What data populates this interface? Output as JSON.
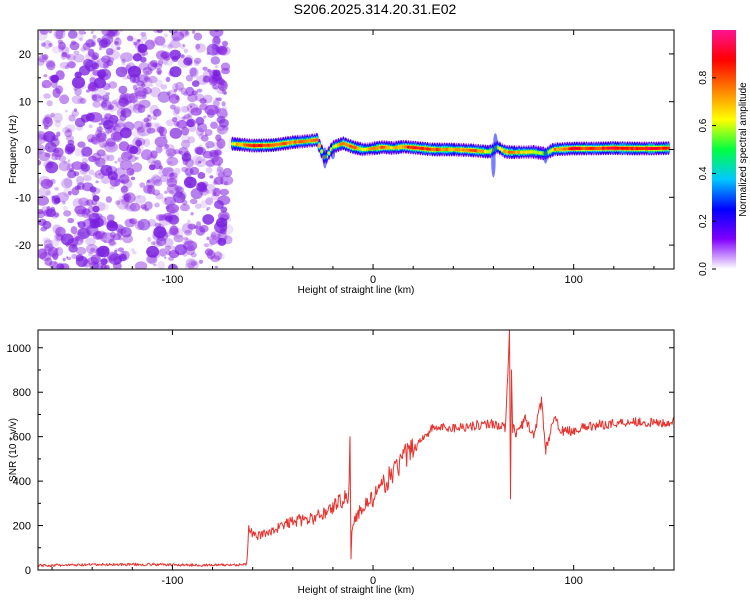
{
  "figure": {
    "title": "S206.2025.314.20.31.E02",
    "colorbar_label": "Normalized spectral amplitude",
    "colorbar_ticks": [
      0.0,
      0.2,
      0.4,
      0.6,
      0.8
    ],
    "colorbar_tick_labels": [
      "0.0",
      "0.2",
      "0.4",
      "0.6",
      "0.8"
    ],
    "colormap": [
      "#ffffff",
      "#8000ff",
      "#0000ff",
      "#00c8ff",
      "#00ff40",
      "#ffff00",
      "#ff8000",
      "#ff0000",
      "#ff1493"
    ]
  },
  "chart_data": [
    {
      "type": "heatmap",
      "xlabel": "Height of straight line (km)",
      "ylabel": "Frequency (Hz)",
      "xlim": [
        -167,
        150
      ],
      "ylim": [
        -25,
        25
      ],
      "xticks": [
        -100,
        0,
        100
      ],
      "xtick_labels": [
        "-100",
        "0",
        "100"
      ],
      "yticks": [
        -20,
        -10,
        0,
        10,
        20
      ],
      "ytick_labels": [
        "-20",
        "-10",
        "0",
        "10",
        "20"
      ],
      "noise_region_x": [
        -167,
        -72
      ],
      "ridge": {
        "x": [
          -70,
          -60,
          -50,
          -40,
          -32,
          -28,
          -24,
          -20,
          -15,
          -10,
          -5,
          0,
          5,
          10,
          15,
          20,
          30,
          40,
          50,
          58,
          62,
          66,
          70,
          80,
          86,
          90,
          100,
          110,
          120,
          130,
          140,
          148
        ],
        "y": [
          1.2,
          0.8,
          0.9,
          1.5,
          1.8,
          2.0,
          -2.0,
          0.5,
          1.3,
          0.5,
          0.0,
          0.2,
          0.5,
          0.3,
          0.6,
          0.4,
          0.0,
          0.0,
          -0.2,
          -0.5,
          0.5,
          -0.5,
          -0.6,
          -0.5,
          -0.9,
          0.0,
          0.2,
          0.2,
          0.3,
          0.2,
          0.2,
          0.3
        ],
        "amplitude": [
          0.6,
          0.85,
          0.8,
          0.75,
          0.7,
          0.8,
          0.5,
          0.6,
          0.75,
          0.8,
          0.55,
          0.7,
          0.8,
          0.65,
          0.75,
          0.85,
          0.8,
          0.7,
          0.8,
          0.6,
          0.5,
          0.75,
          0.7,
          0.6,
          0.5,
          0.7,
          0.85,
          0.8,
          0.9,
          0.85,
          0.9,
          0.8
        ]
      }
    },
    {
      "type": "line",
      "xlabel": "Height of straight line (km)",
      "ylabel": "SNR (10 * v/v)",
      "xlim": [
        -167,
        150
      ],
      "ylim": [
        0,
        1080
      ],
      "xticks": [
        -100,
        0,
        100
      ],
      "xtick_labels": [
        "-100",
        "0",
        "100"
      ],
      "yticks": [
        0,
        200,
        400,
        600,
        800,
        1000
      ],
      "ytick_labels": [
        "0",
        "200",
        "400",
        "600",
        "800",
        "1000"
      ],
      "color": "#e8322d",
      "series": [
        {
          "x": [
            -167,
            -150,
            -130,
            -110,
            -90,
            -75,
            -63,
            -62,
            -58,
            -50,
            -40,
            -30,
            -22,
            -18,
            -12,
            -11.5,
            -11,
            -10.5,
            -5,
            0,
            5,
            10,
            15,
            20,
            25,
            30,
            40,
            50,
            60,
            63,
            66,
            68,
            68.5,
            69,
            69.5,
            70,
            71,
            72,
            76,
            80,
            84,
            86,
            90,
            95,
            100,
            110,
            120,
            130,
            140,
            150
          ],
          "y": [
            20,
            22,
            25,
            25,
            22,
            22,
            25,
            180,
            150,
            180,
            220,
            230,
            270,
            300,
            340,
            600,
            50,
            200,
            290,
            320,
            380,
            440,
            500,
            540,
            600,
            640,
            640,
            650,
            660,
            650,
            640,
            1080,
            320,
            900,
            600,
            660,
            600,
            620,
            680,
            600,
            760,
            540,
            680,
            620,
            630,
            650,
            660,
            670,
            660,
            665
          ]
        }
      ]
    }
  ]
}
